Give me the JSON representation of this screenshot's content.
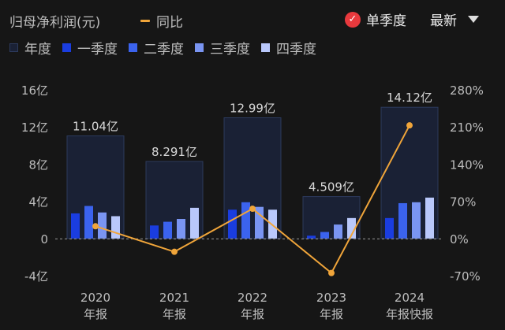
{
  "header": {
    "title": "归母净利润(元)",
    "yoy_label": "同比",
    "single_quarter_label": "单季度",
    "latest_label": "最新"
  },
  "legend": {
    "annual": "年度",
    "q1": "一季度",
    "q2": "二季度",
    "q3": "三季度",
    "q4": "四季度"
  },
  "colors": {
    "annual_fill": "#1a2135",
    "annual_stroke": "#2c3a5c",
    "q1": "#1a3de0",
    "q2": "#3b63ee",
    "q3": "#7a95f2",
    "q4": "#b9c8fb",
    "yoy": "#f0a53a",
    "check": "#e8393d"
  },
  "chart_data": {
    "type": "bar",
    "categories": [
      {
        "year": "2020",
        "report": "年报"
      },
      {
        "year": "2021",
        "report": "年报"
      },
      {
        "year": "2022",
        "report": "年报"
      },
      {
        "year": "2023",
        "report": "年报"
      },
      {
        "year": "2024",
        "report": "年报快报"
      }
    ],
    "annual_values": [
      11.04,
      8.291,
      12.99,
      4.509,
      14.12
    ],
    "annual_labels": [
      "11.04亿",
      "8.291亿",
      "12.99亿",
      "4.509亿",
      "14.12亿"
    ],
    "series": [
      {
        "name": "一季度",
        "values": [
          2.7,
          1.4,
          3.1,
          0.3,
          2.2
        ]
      },
      {
        "name": "二季度",
        "values": [
          3.5,
          1.8,
          3.9,
          0.7,
          3.8
        ]
      },
      {
        "name": "三季度",
        "values": [
          2.8,
          2.1,
          3.4,
          1.5,
          3.9
        ]
      },
      {
        "name": "四季度",
        "values": [
          2.4,
          3.3,
          3.1,
          2.2,
          4.4
        ]
      }
    ],
    "yoy": {
      "name": "同比",
      "values": [
        23,
        -25,
        56,
        -65,
        213
      ]
    },
    "left_axis": {
      "unit": "亿",
      "range": [
        -4,
        16
      ],
      "ticks": [
        16,
        12,
        8,
        4,
        0,
        -4
      ],
      "tick_labels": [
        "16亿",
        "12亿",
        "8亿",
        "4亿",
        "0",
        "-4亿"
      ]
    },
    "right_axis": {
      "unit": "%",
      "range": [
        -70,
        280
      ],
      "ticks": [
        280,
        210,
        140,
        70,
        0,
        -70
      ],
      "tick_labels": [
        "280%",
        "210%",
        "140%",
        "70%",
        "0%",
        "-70%"
      ]
    },
    "grid": false,
    "zero_line": "dashed",
    "legend_position": "top-left"
  }
}
